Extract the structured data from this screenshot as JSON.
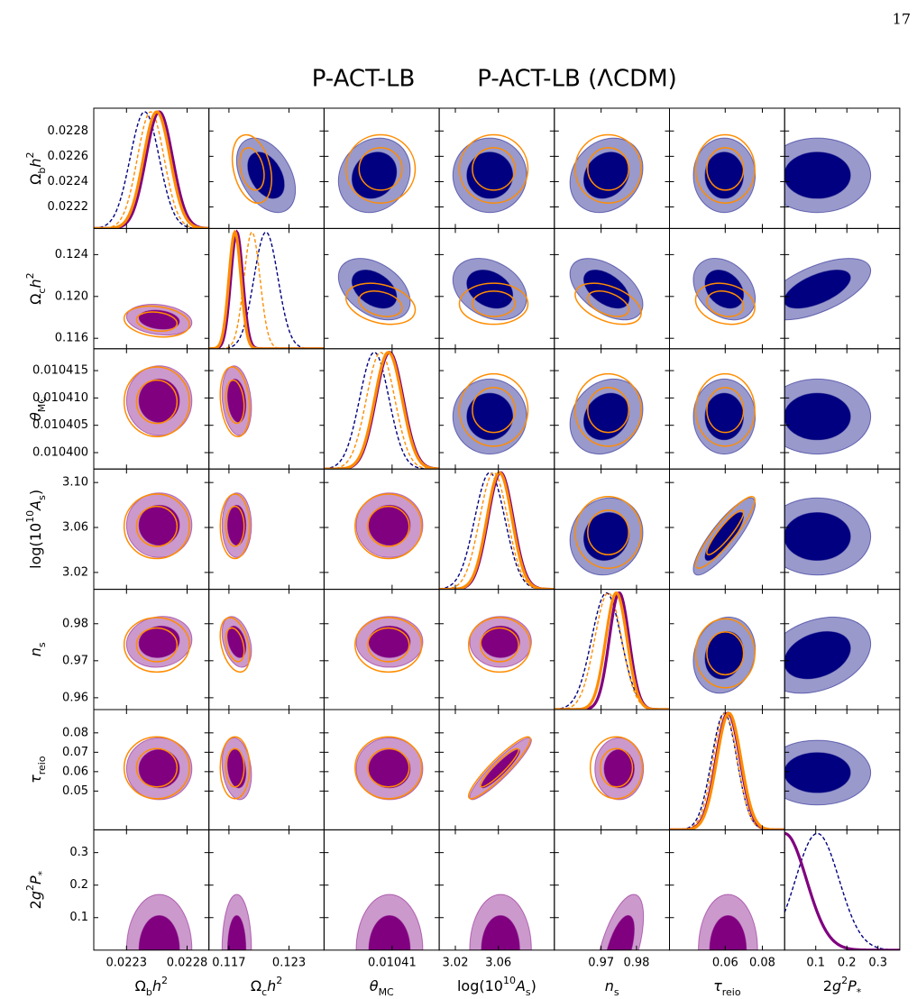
{
  "page_number": 17,
  "chart_data": {
    "type": "triangle",
    "params": [
      {
        "label": [
          {
            "text": "Ω"
          },
          {
            "text": "b",
            "shift": "sub"
          },
          {
            "text": "h",
            "italic": true
          },
          {
            "text": "2",
            "shift": "super"
          }
        ],
        "lim": [
          0.02203,
          0.02298
        ],
        "yticks": [
          0.0222,
          0.0224,
          0.0226,
          0.0228
        ],
        "xticks": [
          0.0223,
          0.0228
        ]
      },
      {
        "label": [
          {
            "text": "Ω"
          },
          {
            "text": "c",
            "shift": "sub"
          },
          {
            "text": "h",
            "italic": true
          },
          {
            "text": "2",
            "shift": "super"
          }
        ],
        "lim": [
          0.115,
          0.1265
        ],
        "yticks": [
          0.116,
          {
            "value": 0.12,
            "label": "0.120"
          },
          0.124
        ],
        "xticks": [
          0.117,
          0.123
        ]
      },
      {
        "label": [
          {
            "text": "θ",
            "italic": true
          },
          {
            "text": "MC",
            "shift": "sub"
          }
        ],
        "lim": [
          0.010397,
          0.010419
        ],
        "yticks": [
          {
            "value": 0.0104,
            "label": "0.010400"
          },
          0.010405,
          {
            "value": 0.01041,
            "label": "0.010410"
          },
          0.010415
        ],
        "xticks": [
          0.01041
        ]
      },
      {
        "label": [
          {
            "text": "log(10"
          },
          {
            "text": "10",
            "shift": "super"
          },
          {
            "text": "A",
            "italic": true
          },
          {
            "text": "s",
            "shift": "sub"
          },
          {
            "text": ")"
          }
        ],
        "lim": [
          3.005,
          3.112
        ],
        "yticks": [
          3.02,
          3.06,
          {
            "value": 3.1,
            "label": "3.10"
          }
        ],
        "xticks": [
          3.02,
          3.06
        ]
      },
      {
        "label": [
          {
            "text": "n",
            "italic": true
          },
          {
            "text": "s",
            "shift": "sub"
          }
        ],
        "lim": [
          0.9568,
          0.9893
        ],
        "yticks": [
          0.96,
          0.97,
          0.98
        ],
        "xticks": [
          0.97,
          0.98
        ]
      },
      {
        "label": [
          {
            "text": "τ",
            "italic": true
          },
          {
            "text": "reio",
            "shift": "sub"
          }
        ],
        "lim": [
          0.03,
          0.092
        ],
        "yticks": [
          0.05,
          0.06,
          0.07,
          0.08
        ],
        "xticks": [
          0.06,
          0.08
        ]
      },
      {
        "label": [
          {
            "text": "2"
          },
          {
            "text": "g",
            "italic": true
          },
          {
            "text": "2",
            "shift": "super"
          },
          {
            "text": "P",
            "italic": true
          },
          {
            "text": "*",
            "shift": "sub"
          }
        ],
        "lim": [
          0,
          0.37
        ],
        "yticks": [
          0.1,
          0.2,
          0.3
        ],
        "xticks": [
          0.1,
          0.2,
          0.3
        ]
      }
    ],
    "series": [
      {
        "name": "P-ACT-LB",
        "color": "#800080",
        "place": "lower",
        "fill": true,
        "dashed": false,
        "mean": [
          0.02257,
          0.11778,
          0.0104095,
          3.062,
          0.9751,
          0.0615,
          0
        ],
        "sd": [
          0.00011,
          0.0006,
          2.6e-06,
          0.0117,
          0.0028,
          0.0065,
          0.07
        ],
        "corr": [
          [
            0,
            1,
            -0.2
          ],
          [
            3,
            5,
            0.92
          ],
          [
            1,
            4,
            -0.35
          ],
          [
            4,
            6,
            0.6
          ],
          [
            1,
            2,
            -0.2
          ],
          [
            1,
            5,
            -0.2
          ],
          [
            0,
            4,
            0.1
          ]
        ]
      },
      {
        "name": "P-ACT-LB (ΛCDM)",
        "color": "#ff8c00",
        "place": "lower",
        "fill": false,
        "dashed": false,
        "mean": [
          0.02255,
          0.1176,
          0.0104093,
          3.061,
          0.9743,
          0.062,
          null
        ],
        "sd": [
          0.00011,
          0.0006,
          2.6e-06,
          0.0117,
          0.003,
          0.0065,
          null
        ],
        "corr": [
          [
            0,
            1,
            -0.2
          ],
          [
            3,
            5,
            0.92
          ],
          [
            1,
            4,
            -0.35
          ],
          [
            1,
            2,
            -0.2
          ]
        ]
      },
      {
        "color": "#000080",
        "place": "upper",
        "fill": true,
        "dashed": true,
        "mean": [
          0.02245,
          0.1207,
          0.0104066,
          3.052,
          0.9715,
          0.0595,
          0.105
        ],
        "sd": [
          0.00012,
          0.0012,
          2.8e-06,
          0.014,
          0.0042,
          0.0068,
          0.07
        ],
        "corr": [
          [
            0,
            1,
            -0.4
          ],
          [
            1,
            2,
            -0.4
          ],
          [
            1,
            3,
            -0.3
          ],
          [
            1,
            4,
            -0.5
          ],
          [
            1,
            5,
            -0.3
          ],
          [
            1,
            6,
            0.6
          ],
          [
            3,
            5,
            0.85
          ],
          [
            0,
            2,
            0.15
          ],
          [
            4,
            5,
            0.15
          ],
          [
            0,
            4,
            0.2
          ],
          [
            3,
            4,
            0.1
          ],
          [
            2,
            4,
            0.2
          ],
          [
            4,
            6,
            0.3
          ]
        ]
      },
      {
        "color": "#ff8c00",
        "place": "upper",
        "fill": false,
        "dashed": true,
        "mean": [
          0.0225,
          0.1193,
          0.0104078,
          3.0556,
          0.972,
          0.06,
          null
        ],
        "sd": [
          0.00011,
          0.0008,
          2.7e-06,
          0.013,
          0.0038,
          0.0065,
          null
        ],
        "corr": [
          [
            0,
            1,
            -0.3
          ],
          [
            1,
            2,
            -0.3
          ],
          [
            1,
            4,
            -0.45
          ],
          [
            3,
            5,
            0.9
          ],
          [
            1,
            5,
            -0.2
          ]
        ]
      }
    ]
  }
}
